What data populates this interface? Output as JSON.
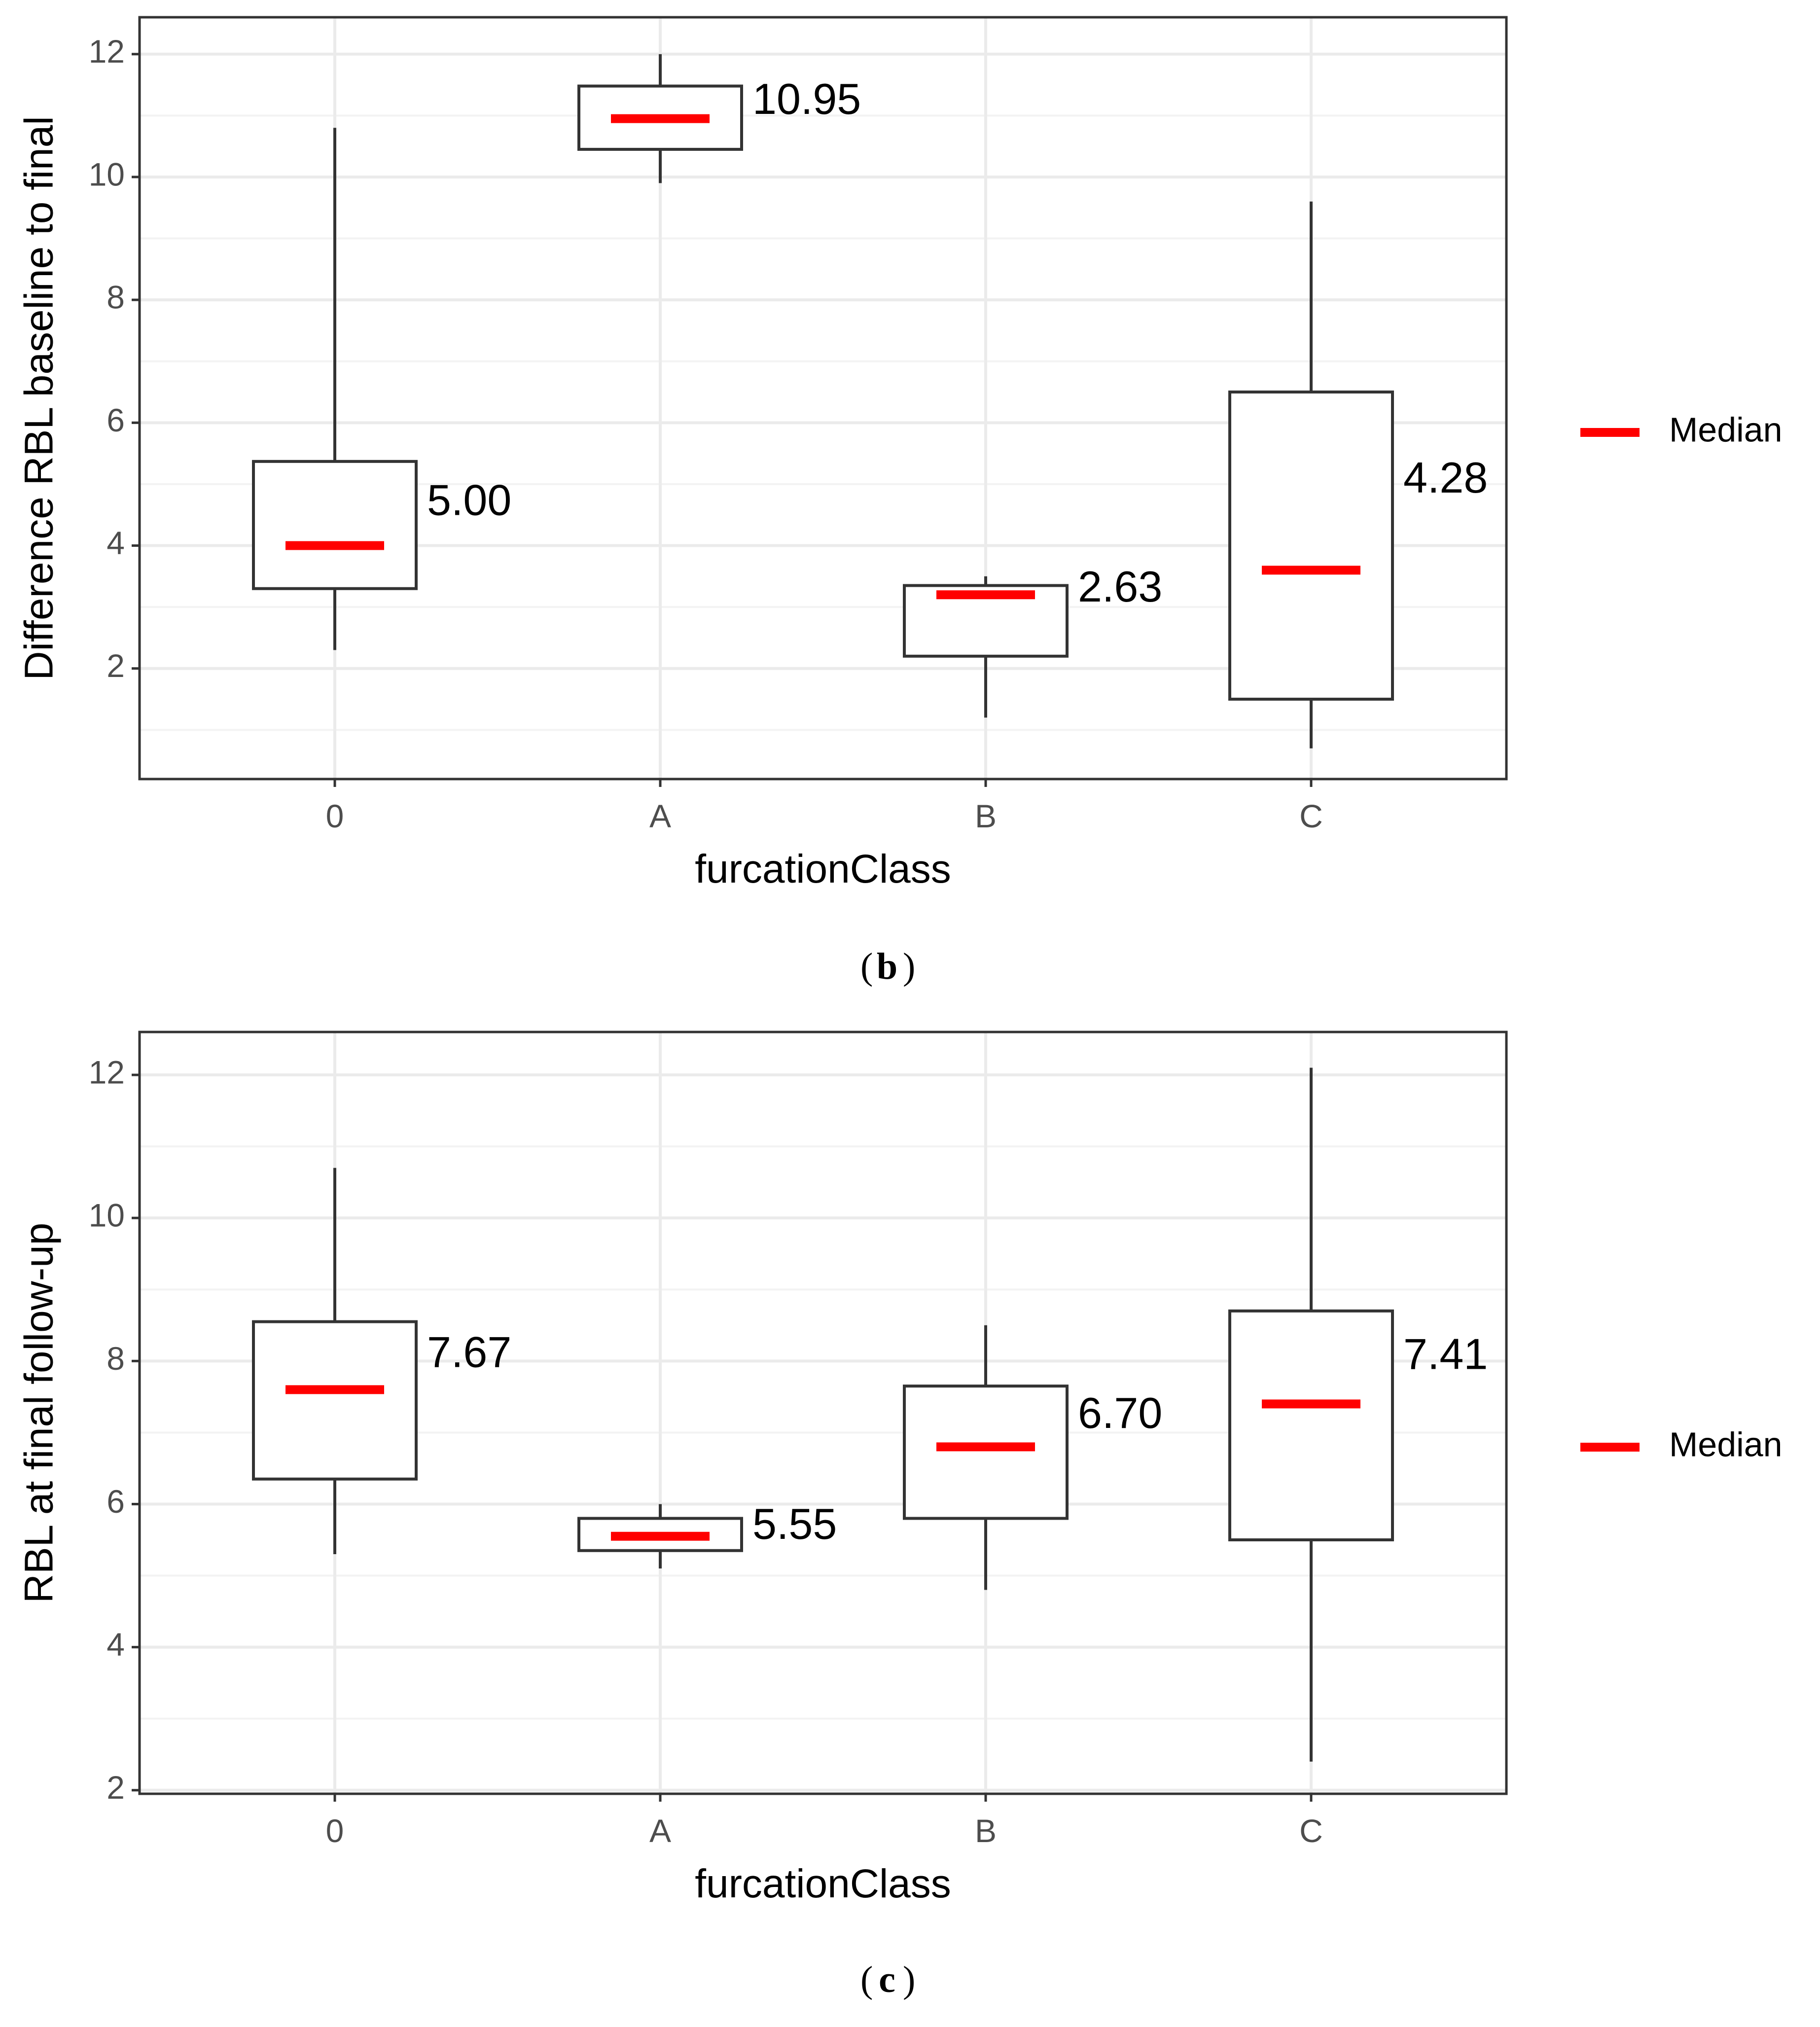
{
  "colors": {
    "median": "#ff0000",
    "box": "#333333",
    "grid_major": "#ebebeb",
    "grid_minor": "#f3f3f3",
    "tick_text": "#4d4d4d",
    "text": "#000000"
  },
  "chart_data": [
    {
      "type": "boxplot",
      "panel_label": "b",
      "xlabel": "furcationClass",
      "ylabel": "Difference RBL baseline to final",
      "categories": [
        "0",
        "A",
        "B",
        "C"
      ],
      "ylim": [
        0.2,
        12.6
      ],
      "yticks": [
        2,
        4,
        6,
        8,
        10,
        12
      ],
      "grid": true,
      "legend": {
        "label": "Median",
        "position": "right"
      },
      "boxes": [
        {
          "category": "0",
          "whisker_low": 2.3,
          "q1": 3.3,
          "median": 4.0,
          "q3": 5.37,
          "whisker_high": 10.8,
          "label": "5.00"
        },
        {
          "category": "A",
          "whisker_low": 9.9,
          "q1": 10.45,
          "median": 10.95,
          "q3": 11.48,
          "whisker_high": 12.0,
          "label": "10.95"
        },
        {
          "category": "B",
          "whisker_low": 1.2,
          "q1": 2.2,
          "median": 3.2,
          "q3": 3.35,
          "whisker_high": 3.5,
          "label": "2.63"
        },
        {
          "category": "C",
          "whisker_low": 0.7,
          "q1": 1.5,
          "median": 3.6,
          "q3": 6.5,
          "whisker_high": 9.6,
          "label": "4.28"
        }
      ]
    },
    {
      "type": "boxplot",
      "panel_label": "c",
      "xlabel": "furcationClass",
      "ylabel": "RBL at final follow-up",
      "categories": [
        "0",
        "A",
        "B",
        "C"
      ],
      "ylim": [
        1.95,
        12.6
      ],
      "yticks": [
        2,
        4,
        6,
        8,
        10,
        12
      ],
      "grid": true,
      "legend": {
        "label": "Median",
        "position": "right"
      },
      "boxes": [
        {
          "category": "0",
          "whisker_low": 5.3,
          "q1": 6.35,
          "median": 7.6,
          "q3": 8.55,
          "whisker_high": 10.7,
          "label": "7.67"
        },
        {
          "category": "A",
          "whisker_low": 5.1,
          "q1": 5.35,
          "median": 5.55,
          "q3": 5.8,
          "whisker_high": 6.0,
          "label": "5.55"
        },
        {
          "category": "B",
          "whisker_low": 4.8,
          "q1": 5.8,
          "median": 6.8,
          "q3": 7.65,
          "whisker_high": 8.5,
          "label": "6.70"
        },
        {
          "category": "C",
          "whisker_low": 2.4,
          "q1": 5.5,
          "median": 7.4,
          "q3": 8.7,
          "whisker_high": 12.1,
          "label": "7.41"
        }
      ]
    }
  ]
}
